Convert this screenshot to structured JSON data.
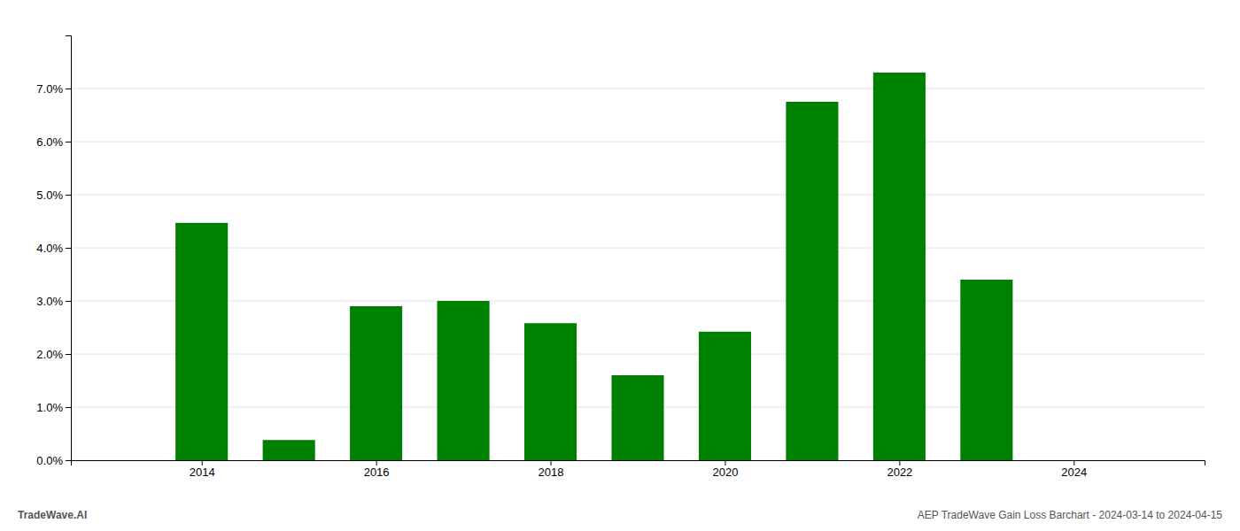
{
  "chart_data": {
    "type": "bar",
    "x": [
      2014,
      2015,
      2016,
      2017,
      2018,
      2019,
      2020,
      2021,
      2022,
      2023
    ],
    "values": [
      0.0447,
      0.0038,
      0.029,
      0.03,
      0.0258,
      0.016,
      0.0242,
      0.0675,
      0.073,
      0.034
    ],
    "color": "#008000",
    "xlim": [
      2012.5,
      2025.5
    ],
    "xticks": [
      2014,
      2016,
      2018,
      2020,
      2022,
      2024
    ],
    "ylim": [
      0,
      0.08
    ],
    "yticks": [
      {
        "value": 0,
        "label": "0.0%"
      },
      {
        "value": 0.01,
        "label": "1.0%"
      },
      {
        "value": 0.02,
        "label": "2.0%"
      },
      {
        "value": 0.03,
        "label": "3.0%"
      },
      {
        "value": 0.04,
        "label": "4.0%"
      },
      {
        "value": 0.05,
        "label": "5.0%"
      },
      {
        "value": 0.06,
        "label": "6.0%"
      },
      {
        "value": 0.07,
        "label": "7.0%"
      }
    ],
    "grid": true,
    "annotations": [
      "TradeWave.AI",
      "AEP TradeWave Gain Loss Barchart - 2024-03-14 to 2024-04-15"
    ]
  }
}
